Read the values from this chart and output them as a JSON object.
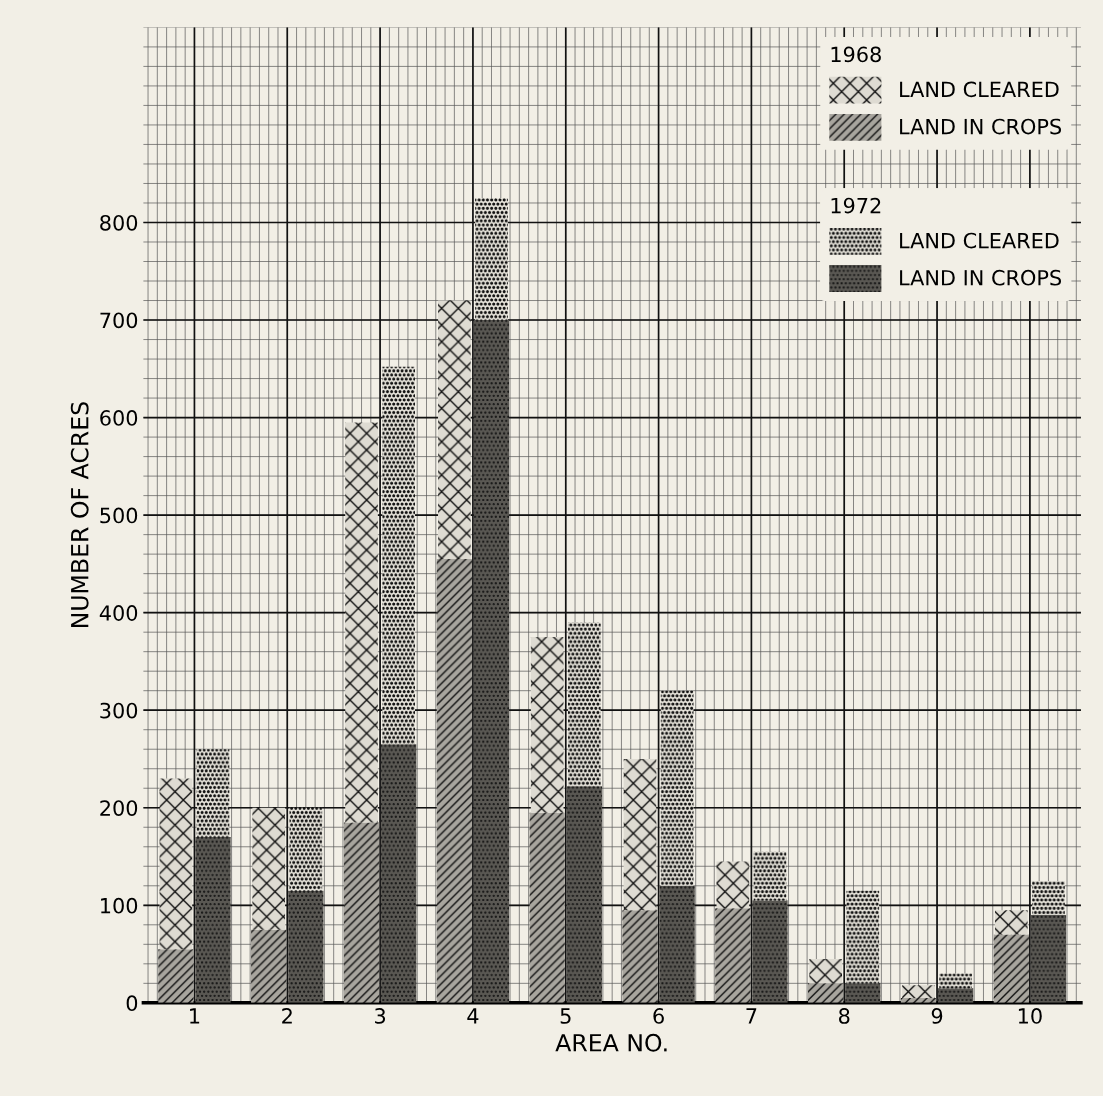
{
  "chart_data": {
    "type": "bar",
    "xlabel": "AREA NO.",
    "ylabel": "NUMBER OF ACRES",
    "categories": [
      "1",
      "2",
      "3",
      "4",
      "5",
      "6",
      "7",
      "8",
      "9",
      "10"
    ],
    "series": [
      {
        "name": "LAND IN CROPS",
        "color": "#a8a59e",
        "values": [
          55,
          75,
          185,
          455,
          195,
          95,
          97,
          20,
          5,
          70
        ]
      },
      {
        "name": "LAND CLEARED",
        "color": "#dedbd2",
        "base": [
          55,
          75,
          185,
          455,
          195,
          95,
          97,
          20,
          5,
          70
        ],
        "values": [
          175,
          125,
          410,
          265,
          180,
          155,
          48,
          25,
          13,
          25
        ]
      },
      {
        "name": "LAND IN CROPS",
        "color": "#5a5853",
        "values": [
          170,
          115,
          265,
          700,
          222,
          120,
          105,
          20,
          15,
          90
        ]
      },
      {
        "name": "LAND CLEARED",
        "color": "#e8e5dc",
        "base": [
          170,
          115,
          265,
          700,
          222,
          120,
          105,
          20,
          15,
          90
        ],
        "values": [
          90,
          85,
          387,
          125,
          168,
          200,
          50,
          95,
          15,
          35
        ]
      }
    ],
    "annotations": [
      "1968",
      "1972"
    ],
    "ylim": [
      0,
      1000
    ],
    "yticks": [
      0,
      100,
      200,
      300,
      400,
      500,
      600,
      700,
      800
    ],
    "grid": true,
    "legend": "top right"
  }
}
